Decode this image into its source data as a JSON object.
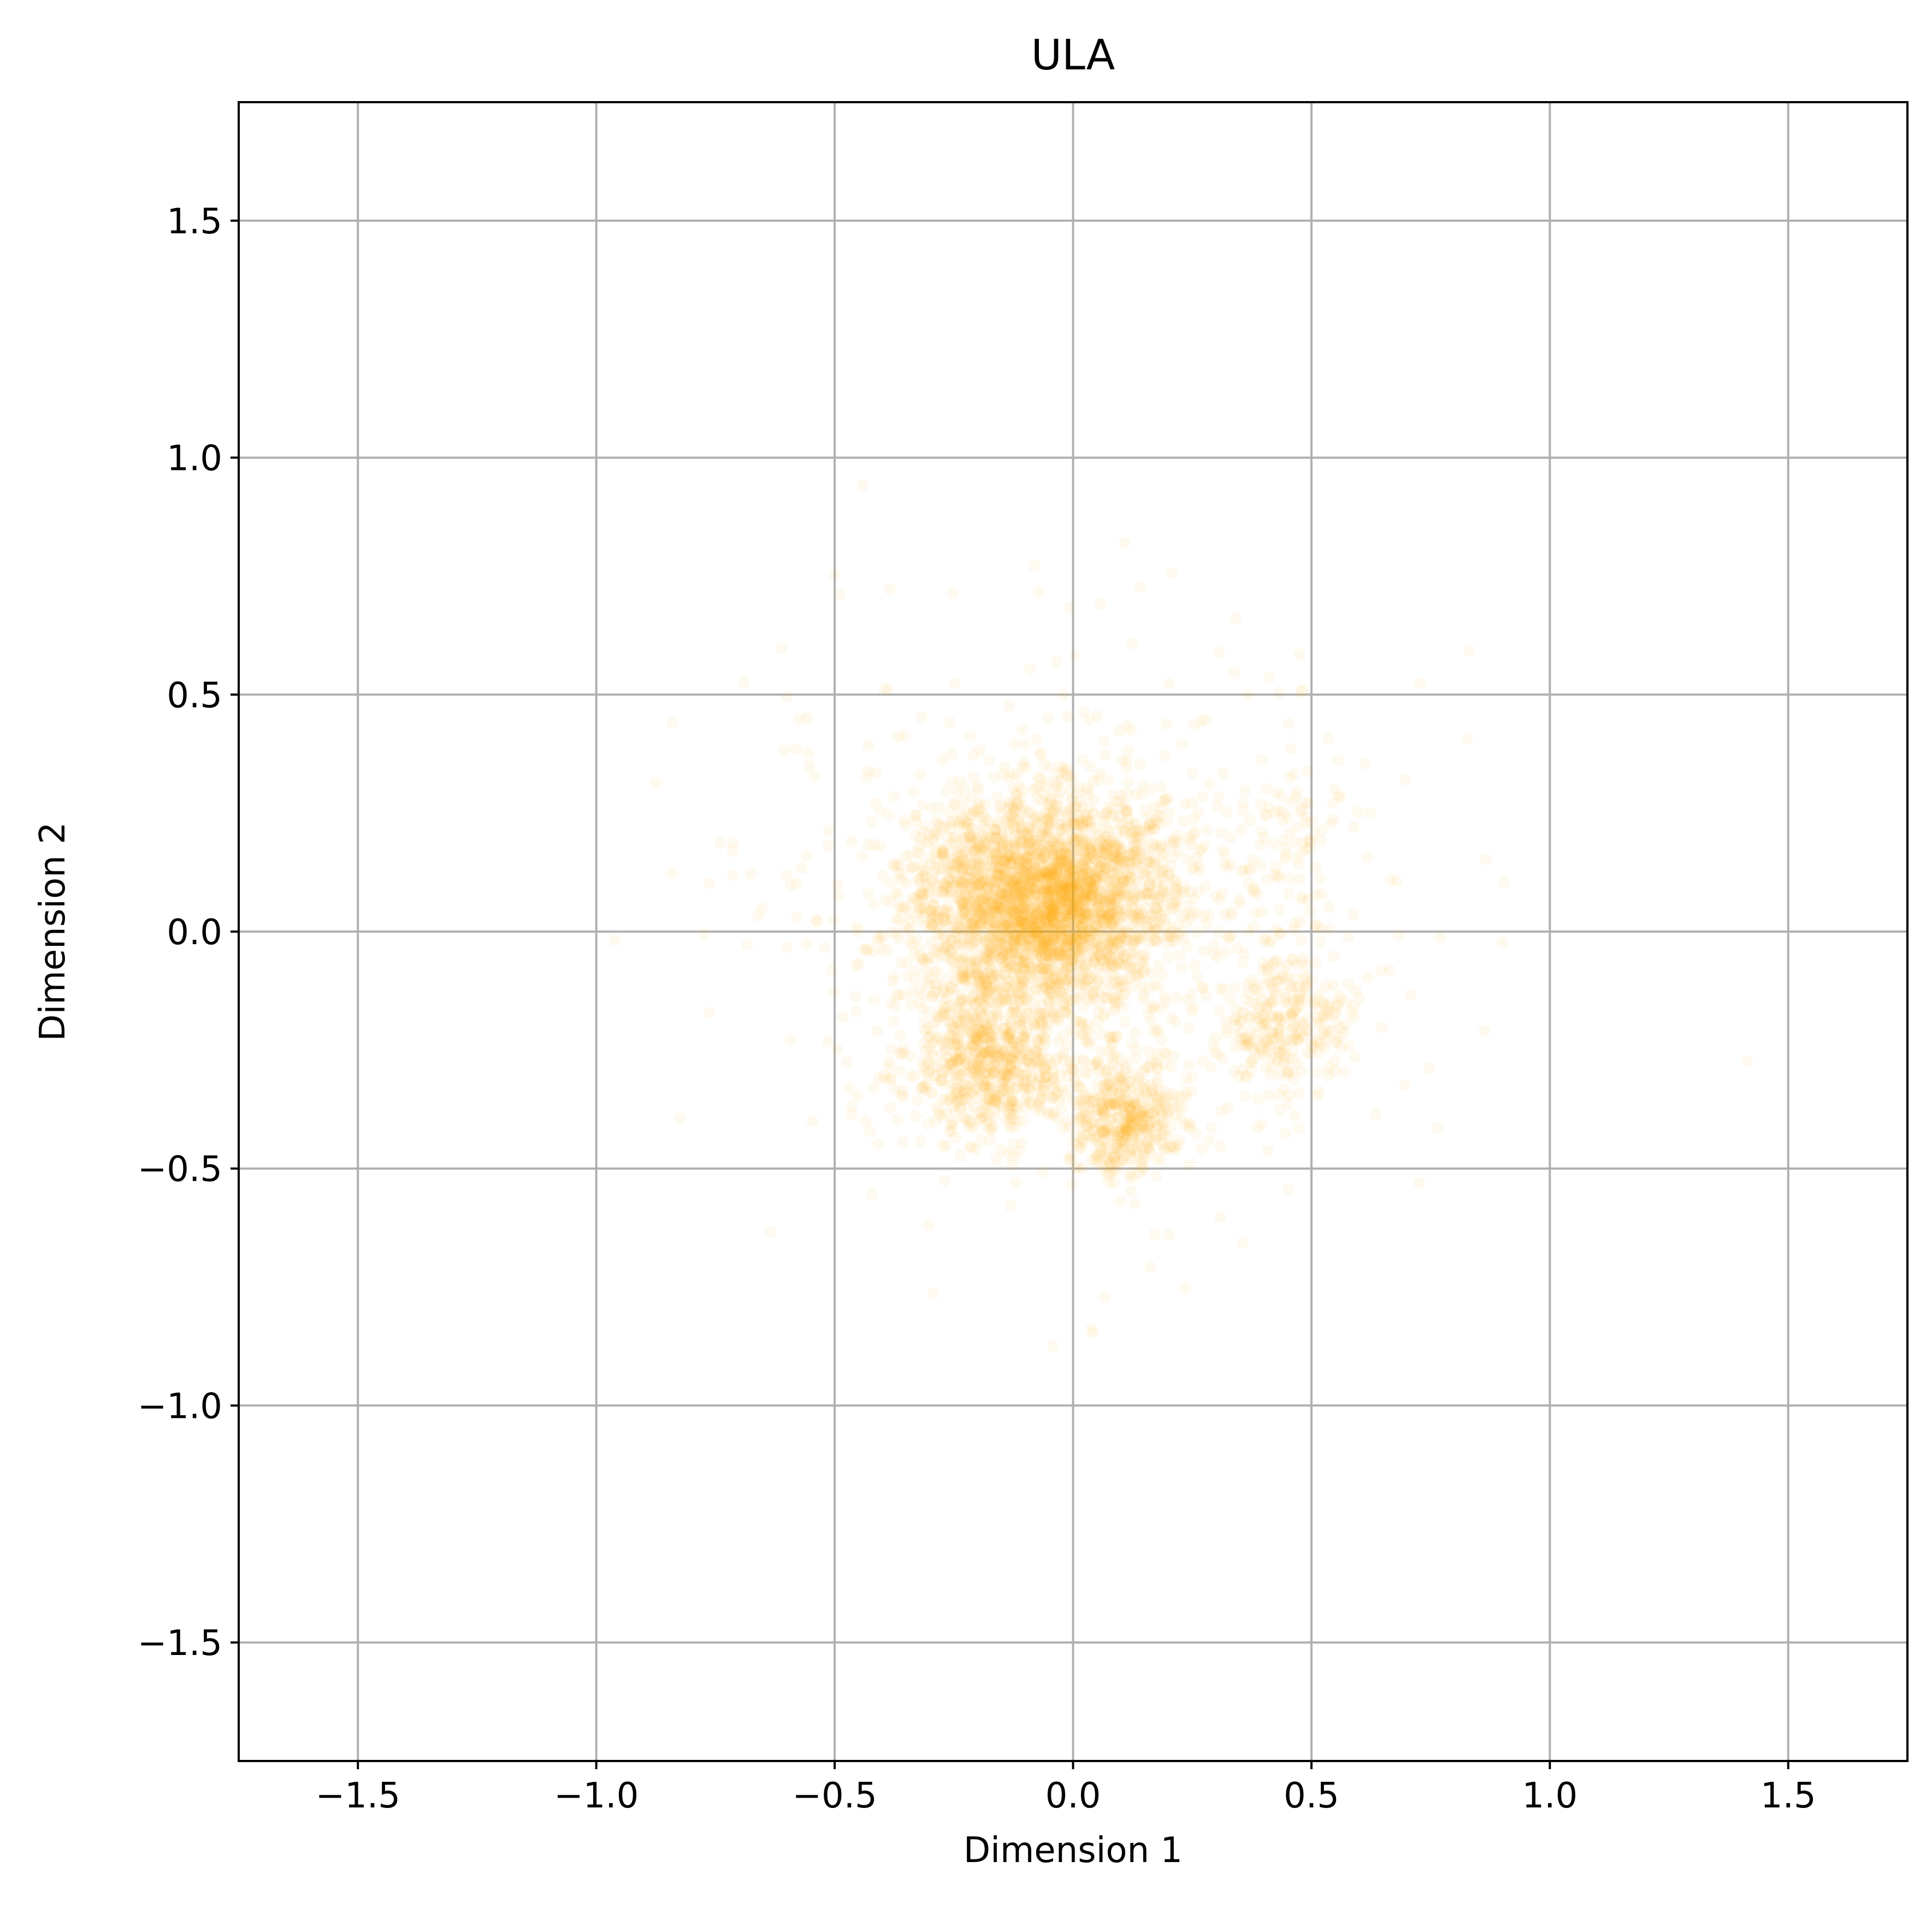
{
  "chart_data": {
    "type": "scatter",
    "title": "ULA",
    "xlabel": "Dimension 1",
    "ylabel": "Dimension 2",
    "xlim": [
      -1.75,
      1.75
    ],
    "ylim": [
      -1.75,
      1.75
    ],
    "xticks": [
      -1.5,
      -1.0,
      -0.5,
      0.0,
      0.5,
      1.0,
      1.5
    ],
    "yticks": [
      -1.5,
      -1.0,
      -0.5,
      0.0,
      0.5,
      1.0,
      1.5
    ],
    "xtick_labels": [
      "−1.5",
      "−1.0",
      "−0.5",
      "0.0",
      "0.5",
      "1.0",
      "1.5"
    ],
    "ytick_labels": [
      "−1.5",
      "−1.0",
      "−0.5",
      "0.0",
      "0.5",
      "1.0",
      "1.5"
    ],
    "grid": true,
    "point_color": "#ffa500",
    "clusters": [
      {
        "cx": -0.06,
        "cy": 0.06,
        "sx": 0.13,
        "sy": 0.11,
        "weight": 0.58
      },
      {
        "cx": -0.17,
        "cy": -0.28,
        "sx": 0.08,
        "sy": 0.08,
        "weight": 0.14
      },
      {
        "cx": 0.11,
        "cy": -0.39,
        "sx": 0.06,
        "sy": 0.06,
        "weight": 0.09
      },
      {
        "cx": 0.44,
        "cy": -0.19,
        "sx": 0.07,
        "sy": 0.07,
        "weight": 0.05
      },
      {
        "cx": 0.43,
        "cy": 0.18,
        "sx": 0.09,
        "sy": 0.09,
        "weight": 0.02
      },
      {
        "cx": 0.0,
        "cy": 0.0,
        "sx": 0.33,
        "sy": 0.3,
        "weight": 0.12
      }
    ]
  }
}
